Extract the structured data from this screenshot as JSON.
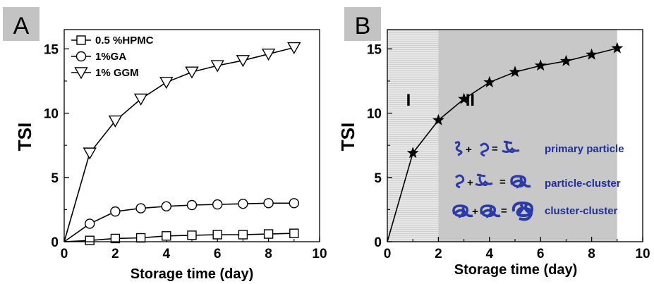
{
  "chart_data": [
    {
      "panel_label": "A",
      "type": "line",
      "xlabel": "Storage time (day)",
      "ylabel": "TSI",
      "xlim": [
        0,
        10
      ],
      "ylim": [
        0,
        16.5
      ],
      "xticks": [
        "0",
        "2",
        "4",
        "6",
        "8",
        "10"
      ],
      "yticks": [
        "0",
        "5",
        "10",
        "15"
      ],
      "legend_position": "top-left",
      "series": [
        {
          "name": "0.5 %HPMC",
          "marker": "square",
          "x": [
            0,
            1,
            2,
            3,
            4,
            5,
            6,
            7,
            8,
            9
          ],
          "y": [
            0,
            0.1,
            0.25,
            0.3,
            0.45,
            0.5,
            0.55,
            0.55,
            0.6,
            0.65
          ]
        },
        {
          "name": "1%GA",
          "marker": "circle",
          "x": [
            0,
            1,
            2,
            3,
            4,
            5,
            6,
            7,
            8,
            9
          ],
          "y": [
            0,
            1.4,
            2.35,
            2.6,
            2.75,
            2.85,
            2.9,
            2.95,
            3.0,
            3.0
          ]
        },
        {
          "name": "1% GGM",
          "marker": "triangle-down",
          "x": [
            0,
            1,
            2,
            3,
            4,
            5,
            6,
            7,
            8,
            9
          ],
          "y": [
            0,
            6.9,
            9.4,
            11.1,
            12.4,
            13.2,
            13.7,
            14.1,
            14.6,
            15.1
          ]
        }
      ]
    },
    {
      "panel_label": "B",
      "type": "line",
      "xlabel": "Storage time (day)",
      "ylabel": "TSI",
      "xlim": [
        0,
        10
      ],
      "ylim": [
        0,
        16.5
      ],
      "xticks": [
        "0",
        "2",
        "4",
        "6",
        "8",
        "10"
      ],
      "yticks": [
        "0",
        "5",
        "10",
        "15"
      ],
      "regions": [
        {
          "label": "I",
          "x_range": [
            0,
            2
          ],
          "fill": "light-gray-hatched"
        },
        {
          "label": "II",
          "x_range": [
            2,
            9
          ],
          "fill": "gray"
        }
      ],
      "series": [
        {
          "marker": "star",
          "x": [
            0,
            1,
            2,
            3,
            4,
            5,
            6,
            7,
            8,
            9
          ],
          "y": [
            0,
            6.9,
            9.45,
            11.1,
            12.4,
            13.2,
            13.7,
            14.05,
            14.55,
            15.05
          ]
        }
      ],
      "annotations": [
        {
          "text": "primary particle"
        },
        {
          "text": "particle-cluster"
        },
        {
          "text": "cluster-cluster"
        }
      ]
    }
  ],
  "colors": {
    "line": "#000000",
    "region_I": "#e2e2e2",
    "region_II": "#c8c8c8",
    "panel_label_bg": "#c3c3c3",
    "annotation_text": "#1f2f9a",
    "particle_icon": "#2b3aa8"
  },
  "icons": [
    "particle-icon",
    "plus-sign",
    "equals-sign"
  ]
}
